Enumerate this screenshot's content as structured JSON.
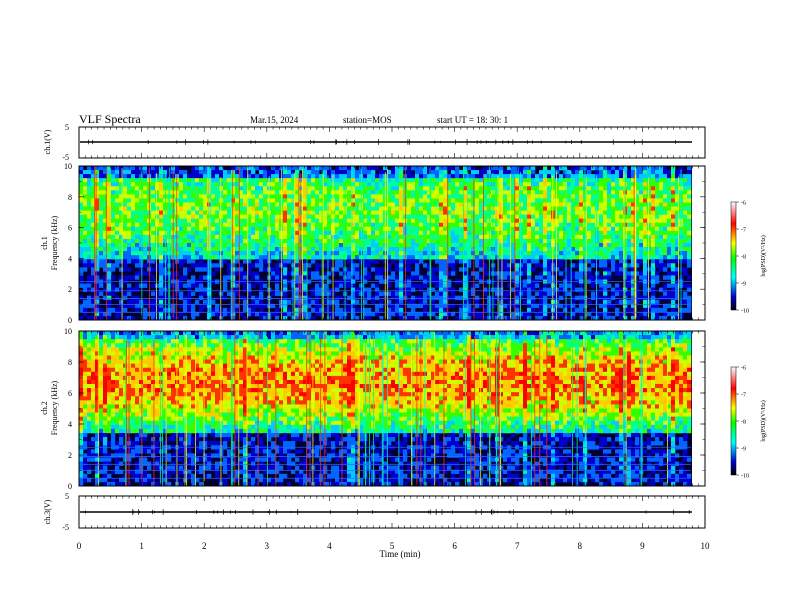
{
  "header": {
    "title": "VLF Spectra",
    "date": "Mar.15, 2024",
    "station": "station=MOS",
    "start_ut": "start UT =  18: 30: 1"
  },
  "colors": {
    "background": "#000033",
    "colormap": [
      "#000000",
      "#0000ff",
      "#00ffff",
      "#00ff00",
      "#ffff00",
      "#ff0000",
      "#ffffff"
    ]
  },
  "chart_data": [
    {
      "type": "line",
      "panel": "ch.1 voltage",
      "ylabel": "ch.1(V)",
      "ylim": [
        -5,
        5
      ],
      "yticks": [
        "5",
        "-5"
      ],
      "xlim": [
        0,
        10
      ]
    },
    {
      "type": "heatmap",
      "panel": "ch.1 spectrogram",
      "ylabel_lines": [
        "ch.1",
        "Frequency (kHz)"
      ],
      "ylim": [
        0,
        10
      ],
      "yticks": [
        "0",
        "2",
        "4",
        "6",
        "8",
        "10"
      ],
      "xlim": [
        0,
        10
      ],
      "colorbar": {
        "label": "log(PSD)(V²/Hz)",
        "range": [
          -10,
          -6
        ],
        "ticks": [
          "-6",
          "-7",
          "-8",
          "-9",
          "-10"
        ]
      }
    },
    {
      "type": "heatmap",
      "panel": "ch.2 spectrogram",
      "ylabel_lines": [
        "ch.2",
        "Frequency (kHz)"
      ],
      "ylim": [
        0,
        10
      ],
      "yticks": [
        "0",
        "2",
        "4",
        "6",
        "8",
        "10"
      ],
      "xlim": [
        0,
        10
      ],
      "colorbar": {
        "label": "log(PSD)(V²/Hz)",
        "range": [
          -10,
          -6
        ],
        "ticks": [
          "-6",
          "-7",
          "-8",
          "-9",
          "-10"
        ]
      }
    },
    {
      "type": "line",
      "panel": "ch.3 voltage",
      "ylabel": "ch.3(V)",
      "ylim": [
        -5,
        5
      ],
      "yticks": [
        "5",
        "-5"
      ],
      "xlim": [
        0,
        10
      ],
      "xlabel": "Time (min)",
      "xticks": [
        "0",
        "1",
        "2",
        "3",
        "4",
        "5",
        "6",
        "7",
        "8",
        "9",
        "10"
      ]
    }
  ]
}
